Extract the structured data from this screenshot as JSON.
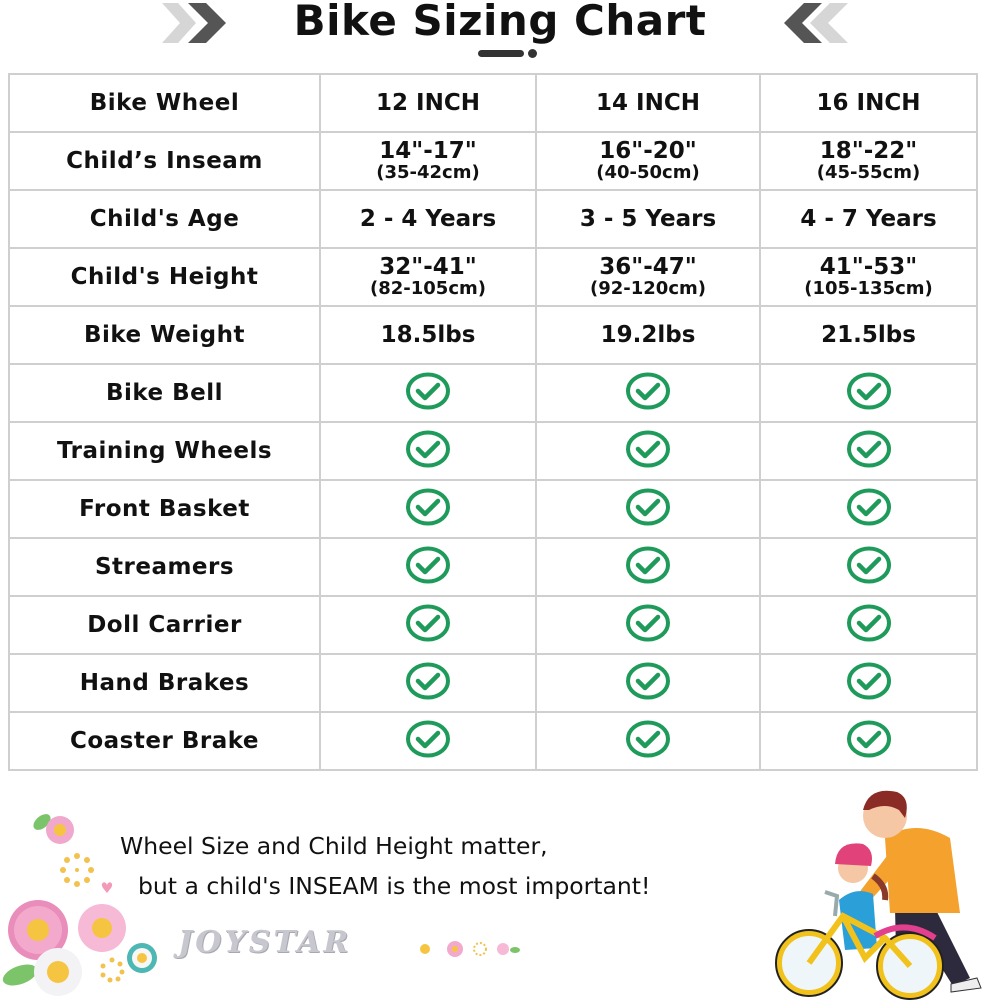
{
  "header": {
    "title": "Bike Sizing Chart",
    "left_decor_icon": "double-chevron-right-icon",
    "right_decor_icon": "double-chevron-left-icon"
  },
  "table": {
    "columns": [
      "Bike Wheel",
      "12 INCH",
      "14 INCH",
      "16 INCH"
    ],
    "rows": [
      {
        "label": "Child’s Inseam",
        "cells": [
          {
            "main": "14\"-17\"",
            "sub": "(35-42cm)"
          },
          {
            "main": "16\"-20\"",
            "sub": "(40-50cm)"
          },
          {
            "main": "18\"-22\"",
            "sub": "(45-55cm)"
          }
        ]
      },
      {
        "label": "Child's Age",
        "cells": [
          {
            "main": "2 - 4 Years"
          },
          {
            "main": "3 - 5 Years"
          },
          {
            "main": "4 - 7 Years"
          }
        ]
      },
      {
        "label": "Child's Height",
        "cells": [
          {
            "main": "32\"-41\"",
            "sub": "(82-105cm)"
          },
          {
            "main": "36\"-47\"",
            "sub": "(92-120cm)"
          },
          {
            "main": "41\"-53\"",
            "sub": "(105-135cm)"
          }
        ]
      },
      {
        "label": "Bike Weight",
        "cells": [
          {
            "main": "18.5lbs"
          },
          {
            "main": "19.2lbs"
          },
          {
            "main": "21.5lbs"
          }
        ]
      },
      {
        "label": "Bike Bell",
        "cells": [
          "check",
          "check",
          "check"
        ]
      },
      {
        "label": "Training Wheels",
        "cells": [
          "check",
          "check",
          "check"
        ]
      },
      {
        "label": "Front Basket",
        "cells": [
          "check",
          "check",
          "check"
        ]
      },
      {
        "label": "Streamers",
        "cells": [
          "check",
          "check",
          "check"
        ]
      },
      {
        "label": "Doll Carrier",
        "cells": [
          "check",
          "check",
          "check"
        ]
      },
      {
        "label": "Hand Brakes",
        "cells": [
          "check",
          "check",
          "check"
        ]
      },
      {
        "label": "Coaster Brake",
        "cells": [
          "check",
          "check",
          "check"
        ]
      }
    ],
    "check_icon": "check-circle-icon",
    "check_color": "#1e9a5a",
    "border_color": "#cfcfcf"
  },
  "chart_data": {
    "type": "table",
    "title": "Bike Sizing Chart",
    "columns": [
      "Bike Wheel",
      "12 INCH",
      "14 INCH",
      "16 INCH"
    ],
    "rows": [
      [
        "Child’s Inseam",
        "14\"-17\" (35-42cm)",
        "16\"-20\" (40-50cm)",
        "18\"-22\" (45-55cm)"
      ],
      [
        "Child's Age",
        "2 - 4 Years",
        "3 - 5 Years",
        "4 - 7 Years"
      ],
      [
        "Child's Height",
        "32\"-41\" (82-105cm)",
        "36\"-47\" (92-120cm)",
        "41\"-53\" (105-135cm)"
      ],
      [
        "Bike Weight",
        "18.5lbs",
        "19.2lbs",
        "21.5lbs"
      ],
      [
        "Bike Bell",
        "✓",
        "✓",
        "✓"
      ],
      [
        "Training Wheels",
        "✓",
        "✓",
        "✓"
      ],
      [
        "Front Basket",
        "✓",
        "✓",
        "✓"
      ],
      [
        "Streamers",
        "✓",
        "✓",
        "✓"
      ],
      [
        "Doll Carrier",
        "✓",
        "✓",
        "✓"
      ],
      [
        "Hand Brakes",
        "✓",
        "✓",
        "✓"
      ],
      [
        "Coaster Brake",
        "✓",
        "✓",
        "✓"
      ]
    ]
  },
  "footer": {
    "line1": "Wheel Size and Child Height matter,",
    "line2": "but a child's INSEAM is the most important!",
    "brand": "JOYSTAR",
    "illustration": "parent-teaching-child-bike-illustration",
    "decor": "flower-decoration"
  }
}
